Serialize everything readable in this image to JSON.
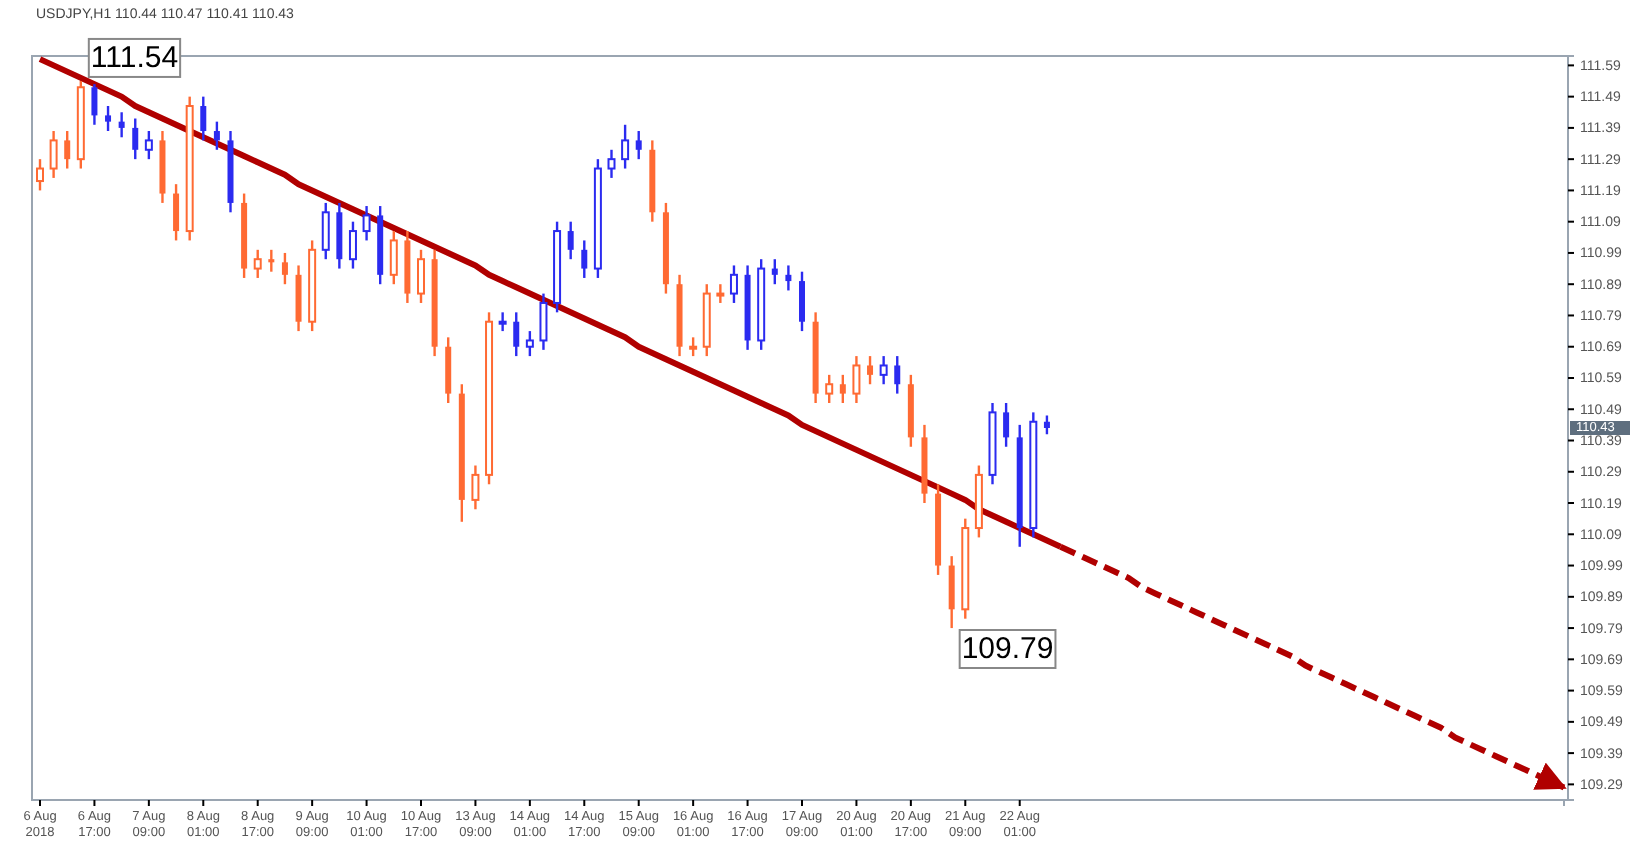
{
  "chart_data": {
    "type": "candlestick",
    "title": "USDJPY,H1 110.44 110.47 110.41 110.43",
    "categories": [
      "6 Aug 2018",
      null,
      null,
      null,
      "6 Aug 17:00",
      null,
      null,
      null,
      "7 Aug 09:00",
      null,
      null,
      null,
      "8 Aug 01:00",
      null,
      null,
      null,
      "8 Aug 17:00",
      null,
      null,
      null,
      "9 Aug 09:00",
      null,
      null,
      null,
      "10 Aug 01:00",
      null,
      null,
      null,
      "10 Aug 17:00",
      null,
      null,
      null,
      "13 Aug 09:00",
      null,
      null,
      null,
      "14 Aug 01:00",
      null,
      null,
      null,
      "14 Aug 17:00",
      null,
      null,
      null,
      "15 Aug 09:00",
      null,
      null,
      null,
      "16 Aug 01:00",
      null,
      null,
      null,
      "16 Aug 17:00",
      null,
      null,
      null,
      "17 Aug 09:00",
      null,
      null,
      null,
      "20 Aug 01:00",
      null,
      null,
      null,
      "20 Aug 17:00",
      null,
      null,
      null,
      "21 Aug 09:00",
      null,
      null,
      null,
      "22 Aug 01:00",
      null,
      null,
      null,
      null,
      null,
      null,
      null,
      null,
      null,
      null,
      null,
      null,
      null,
      null,
      null,
      null,
      null,
      null,
      null,
      null,
      null,
      null,
      null,
      null,
      null,
      null,
      null,
      null,
      null,
      null,
      null,
      null,
      null,
      null,
      null,
      null,
      null,
      null,
      null,
      null
    ],
    "ohlc": [
      [
        111.22,
        111.29,
        111.19,
        111.26
      ],
      [
        111.26,
        111.38,
        111.23,
        111.35
      ],
      [
        111.35,
        111.38,
        111.26,
        111.29
      ],
      [
        111.29,
        111.54,
        111.26,
        111.52
      ],
      [
        111.52,
        111.53,
        111.4,
        111.43
      ],
      [
        111.43,
        111.46,
        111.38,
        111.41
      ],
      [
        111.41,
        111.44,
        111.36,
        111.39
      ],
      [
        111.39,
        111.42,
        111.29,
        111.32
      ],
      [
        111.32,
        111.38,
        111.29,
        111.35
      ],
      [
        111.35,
        111.38,
        111.15,
        111.18
      ],
      [
        111.18,
        111.21,
        111.03,
        111.06
      ],
      [
        111.06,
        111.49,
        111.03,
        111.46
      ],
      [
        111.46,
        111.49,
        111.35,
        111.38
      ],
      [
        111.38,
        111.41,
        111.32,
        111.35
      ],
      [
        111.35,
        111.38,
        111.12,
        111.15
      ],
      [
        111.15,
        111.18,
        110.91,
        110.94
      ],
      [
        110.94,
        111.0,
        110.91,
        110.97
      ],
      [
        110.97,
        111.0,
        110.93,
        110.96
      ],
      [
        110.96,
        110.99,
        110.89,
        110.92
      ],
      [
        110.92,
        110.95,
        110.74,
        110.77
      ],
      [
        110.77,
        111.03,
        110.74,
        111.0
      ],
      [
        111.0,
        111.15,
        110.97,
        111.12
      ],
      [
        111.12,
        111.15,
        110.94,
        110.97
      ],
      [
        110.97,
        111.09,
        110.94,
        111.06
      ],
      [
        111.06,
        111.14,
        111.03,
        111.11
      ],
      [
        111.11,
        111.14,
        110.89,
        110.92
      ],
      [
        110.92,
        111.06,
        110.89,
        111.03
      ],
      [
        111.03,
        111.06,
        110.83,
        110.86
      ],
      [
        110.86,
        111.0,
        110.83,
        110.97
      ],
      [
        110.97,
        111.0,
        110.66,
        110.69
      ],
      [
        110.69,
        110.72,
        110.51,
        110.54
      ],
      [
        110.54,
        110.57,
        110.13,
        110.2
      ],
      [
        110.2,
        110.31,
        110.17,
        110.28
      ],
      [
        110.28,
        110.8,
        110.25,
        110.77
      ],
      [
        110.77,
        110.8,
        110.74,
        110.77
      ],
      [
        110.77,
        110.8,
        110.66,
        110.69
      ],
      [
        110.69,
        110.74,
        110.66,
        110.71
      ],
      [
        110.71,
        110.86,
        110.68,
        110.83
      ],
      [
        110.83,
        111.09,
        110.8,
        111.06
      ],
      [
        111.06,
        111.09,
        110.97,
        111.0
      ],
      [
        111.0,
        111.03,
        110.91,
        110.94
      ],
      [
        110.94,
        111.29,
        110.91,
        111.26
      ],
      [
        111.26,
        111.32,
        111.23,
        111.29
      ],
      [
        111.29,
        111.4,
        111.26,
        111.35
      ],
      [
        111.35,
        111.38,
        111.29,
        111.32
      ],
      [
        111.32,
        111.35,
        111.09,
        111.12
      ],
      [
        111.12,
        111.15,
        110.86,
        110.89
      ],
      [
        110.89,
        110.92,
        110.66,
        110.69
      ],
      [
        110.69,
        110.72,
        110.66,
        110.69
      ],
      [
        110.69,
        110.89,
        110.66,
        110.86
      ],
      [
        110.86,
        110.89,
        110.83,
        110.86
      ],
      [
        110.86,
        110.95,
        110.83,
        110.92
      ],
      [
        110.92,
        110.95,
        110.68,
        110.71
      ],
      [
        110.71,
        110.97,
        110.68,
        110.94
      ],
      [
        110.94,
        110.97,
        110.89,
        110.92
      ],
      [
        110.92,
        110.95,
        110.87,
        110.9
      ],
      [
        110.9,
        110.93,
        110.74,
        110.77
      ],
      [
        110.77,
        110.8,
        110.51,
        110.54
      ],
      [
        110.54,
        110.6,
        110.51,
        110.57
      ],
      [
        110.57,
        110.6,
        110.51,
        110.54
      ],
      [
        110.54,
        110.66,
        110.51,
        110.63
      ],
      [
        110.63,
        110.66,
        110.57,
        110.6
      ],
      [
        110.6,
        110.66,
        110.57,
        110.63
      ],
      [
        110.63,
        110.66,
        110.54,
        110.57
      ],
      [
        110.57,
        110.6,
        110.37,
        110.4
      ],
      [
        110.4,
        110.44,
        110.19,
        110.22
      ],
      [
        110.22,
        110.25,
        109.96,
        109.99
      ],
      [
        109.99,
        110.02,
        109.79,
        109.85
      ],
      [
        109.85,
        110.14,
        109.82,
        110.11
      ],
      [
        110.11,
        110.31,
        110.08,
        110.28
      ],
      [
        110.28,
        110.51,
        110.25,
        110.48
      ],
      [
        110.48,
        110.51,
        110.37,
        110.4
      ],
      [
        110.4,
        110.44,
        110.05,
        110.11
      ],
      [
        110.11,
        110.48,
        110.08,
        110.45
      ],
      [
        110.45,
        110.47,
        110.41,
        110.43
      ],
      null,
      null,
      null,
      null,
      null,
      null,
      null,
      null,
      null,
      null,
      null,
      null,
      null,
      null,
      null,
      null,
      null,
      null,
      null,
      null,
      null,
      null,
      null,
      null,
      null,
      null,
      null,
      null,
      null,
      null,
      null,
      null,
      null,
      null,
      null,
      null,
      null,
      null
    ],
    "colors": [
      "#ff6a33",
      "#ff6a33",
      "#ff6a33",
      "#ff6a33",
      "#2b2bf0",
      "#2b2bf0",
      "#2b2bf0",
      "#2b2bf0",
      "#2b2bf0",
      "#ff6a33",
      "#ff6a33",
      "#ff6a33",
      "#2b2bf0",
      "#2b2bf0",
      "#2b2bf0",
      "#ff6a33",
      "#ff6a33",
      "#ff6a33",
      "#ff6a33",
      "#ff6a33",
      "#ff6a33",
      "#2b2bf0",
      "#2b2bf0",
      "#2b2bf0",
      "#2b2bf0",
      "#2b2bf0",
      "#ff6a33",
      "#ff6a33",
      "#ff6a33",
      "#ff6a33",
      "#ff6a33",
      "#ff6a33",
      "#ff6a33",
      "#ff6a33",
      "#2b2bf0",
      "#2b2bf0",
      "#2b2bf0",
      "#2b2bf0",
      "#2b2bf0",
      "#2b2bf0",
      "#2b2bf0",
      "#2b2bf0",
      "#2b2bf0",
      "#2b2bf0",
      "#2b2bf0",
      "#ff6a33",
      "#ff6a33",
      "#ff6a33",
      "#ff6a33",
      "#ff6a33",
      "#ff6a33",
      "#2b2bf0",
      "#2b2bf0",
      "#2b2bf0",
      "#2b2bf0",
      "#2b2bf0",
      "#2b2bf0",
      "#ff6a33",
      "#ff6a33",
      "#ff6a33",
      "#ff6a33",
      "#ff6a33",
      "#2b2bf0",
      "#2b2bf0",
      "#ff6a33",
      "#ff6a33",
      "#ff6a33",
      "#ff6a33",
      "#ff6a33",
      "#ff6a33",
      "#2b2bf0",
      "#2b2bf0",
      "#2b2bf0",
      "#2b2bf0",
      "#2b2bf0",
      null,
      null,
      null,
      null,
      null,
      null,
      null,
      null,
      null,
      null,
      null,
      null,
      null,
      null,
      null,
      null,
      null,
      null,
      null,
      null,
      null,
      null,
      null,
      null,
      null,
      null,
      null,
      null,
      null,
      null,
      null,
      null,
      null,
      null,
      null,
      null,
      null,
      null
    ],
    "series": [
      {
        "type": "line",
        "color": "#b00000",
        "line_style": "solid",
        "values": [
          111.61,
          111.59,
          111.57,
          111.55,
          111.53,
          111.51,
          111.49,
          111.46,
          111.44,
          111.42,
          111.4,
          111.38,
          111.36,
          111.34,
          111.32,
          111.3,
          111.28,
          111.26,
          111.24,
          111.21,
          111.19,
          111.17,
          111.15,
          111.13,
          111.11,
          111.09,
          111.07,
          111.05,
          111.03,
          111.01,
          110.99,
          110.97,
          110.95,
          110.92,
          110.9,
          110.88,
          110.86,
          110.84,
          110.82,
          110.8,
          110.78,
          110.76,
          110.74,
          110.72,
          110.69,
          110.67,
          110.65,
          110.63,
          110.61,
          110.59,
          110.57,
          110.55,
          110.53,
          110.51,
          110.49,
          110.47,
          110.44,
          110.42,
          110.4,
          110.38,
          110.36,
          110.34,
          110.32,
          110.3,
          110.28,
          110.26,
          110.24,
          110.22,
          110.2,
          110.17,
          110.15,
          110.13,
          110.11,
          110.09,
          110.07,
          110.05,
          null,
          null,
          null,
          null,
          null,
          null,
          null,
          null,
          null,
          null,
          null,
          null,
          null,
          null,
          null,
          null,
          null,
          null,
          null,
          null,
          null,
          null,
          null,
          null,
          null,
          null,
          null,
          null,
          null,
          null,
          null,
          null,
          null,
          null,
          null,
          null,
          null
        ]
      },
      {
        "type": "line",
        "color": "#b00000",
        "line_style": "dashed",
        "values": [
          null,
          null,
          null,
          null,
          null,
          null,
          null,
          null,
          null,
          null,
          null,
          null,
          null,
          null,
          null,
          null,
          null,
          null,
          null,
          null,
          null,
          null,
          null,
          null,
          null,
          null,
          null,
          null,
          null,
          null,
          null,
          null,
          null,
          null,
          null,
          null,
          null,
          null,
          null,
          null,
          null,
          null,
          null,
          null,
          null,
          null,
          null,
          null,
          null,
          null,
          null,
          null,
          null,
          null,
          null,
          null,
          null,
          null,
          null,
          null,
          null,
          null,
          null,
          null,
          null,
          null,
          null,
          null,
          null,
          null,
          null,
          null,
          null,
          null,
          null,
          110.05,
          110.03,
          110.01,
          109.99,
          109.97,
          109.95,
          109.92,
          109.9,
          109.88,
          109.86,
          109.84,
          109.82,
          109.8,
          109.78,
          109.76,
          109.74,
          109.72,
          109.7,
          109.67,
          109.65,
          109.63,
          109.61,
          109.59,
          109.57,
          109.55,
          109.53,
          109.51,
          109.49,
          109.47,
          109.44,
          109.42,
          109.4,
          109.38,
          109.36,
          109.34,
          109.32,
          109.3,
          109.28
        ]
      }
    ],
    "annotations": [
      "111.54",
      "109.79",
      "110.43"
    ],
    "ylim": [
      109.24,
      111.62
    ],
    "yticks": [
      109.29,
      109.39,
      109.49,
      109.59,
      109.69,
      109.79,
      109.89,
      109.99,
      110.09,
      110.19,
      110.29,
      110.39,
      110.49,
      110.59,
      110.69,
      110.79,
      110.89,
      110.99,
      111.09,
      111.19,
      111.29,
      111.39,
      111.49,
      111.59
    ]
  }
}
